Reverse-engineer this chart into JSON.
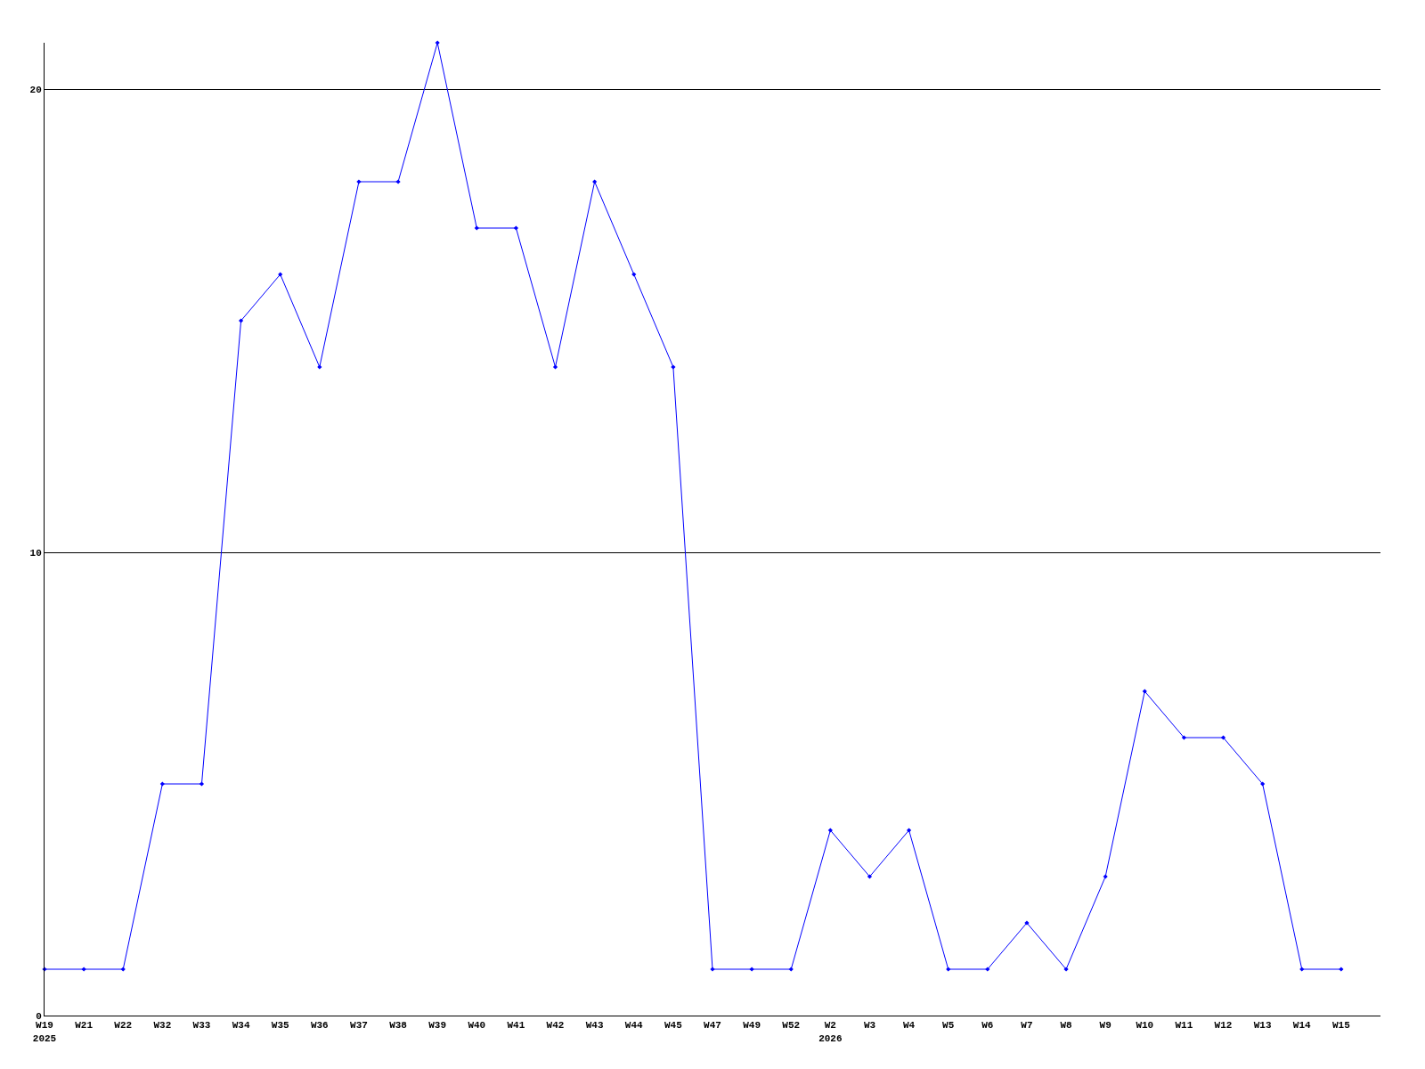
{
  "chart_data": {
    "type": "line",
    "categories": [
      "W19\n2025",
      "W21",
      "W22",
      "W32",
      "W33",
      "W34",
      "W35",
      "W36",
      "W37",
      "W38",
      "W39",
      "W40",
      "W41",
      "W42",
      "W43",
      "W44",
      "W45",
      "W47",
      "W49",
      "W52",
      "W2\n2026",
      "W3",
      "W4",
      "W5",
      "W6",
      "W7",
      "W8",
      "W9",
      "W10",
      "W11",
      "W12",
      "W13",
      "W14",
      "W15"
    ],
    "series": [
      {
        "color": "#0000ff",
        "values": [
          1,
          1,
          1,
          5,
          5,
          15,
          16,
          14,
          18,
          18,
          21,
          17,
          17,
          14,
          18,
          16,
          14,
          1,
          1,
          1,
          4,
          3,
          4,
          1,
          1,
          2,
          1,
          3,
          7,
          6,
          6,
          5,
          1,
          1
        ]
      }
    ],
    "ylim": [
      0,
      21
    ],
    "yticks": [
      0,
      10,
      20
    ],
    "grid": "y",
    "marker": "diamond",
    "line_style": "solid"
  }
}
